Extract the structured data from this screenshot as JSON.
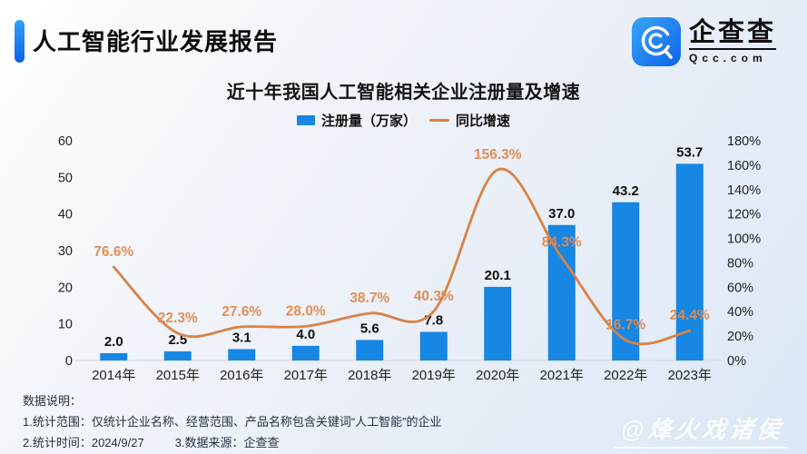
{
  "header": {
    "title": "人工智能行业发展报告",
    "logo": {
      "name_cn": "企查查",
      "name_en": "Qcc.com"
    }
  },
  "chart_data": {
    "type": "bar+line",
    "title": "近十年我国人工智能相关企业注册量及增速",
    "categories": [
      "2014年",
      "2015年",
      "2016年",
      "2017年",
      "2018年",
      "2019年",
      "2020年",
      "2021年",
      "2022年",
      "2023年"
    ],
    "series": [
      {
        "name": "注册量（万家）",
        "type": "bar",
        "axis": "left",
        "values": [
          2.0,
          2.5,
          3.1,
          4.0,
          5.6,
          7.8,
          20.1,
          37.0,
          43.2,
          53.7
        ],
        "labels": [
          "2.0",
          "2.5",
          "3.1",
          "4.0",
          "5.6",
          "7.8",
          "20.1",
          "37.0",
          "43.2",
          "53.7"
        ],
        "color": "#1787e3"
      },
      {
        "name": "同比增速",
        "type": "line",
        "axis": "right",
        "values": [
          76.6,
          22.3,
          27.6,
          28.0,
          38.7,
          40.3,
          156.3,
          84.3,
          16.7,
          24.4
        ],
        "labels": [
          "76.6%",
          "22.3%",
          "27.6%",
          "28.0%",
          "38.7%",
          "40.3%",
          "156.3%",
          "84.3%",
          "16.7%",
          "24.4%"
        ],
        "color": "#d98246",
        "label_color": "#e28a50"
      }
    ],
    "left_axis": {
      "min": 0,
      "max": 60,
      "ticks": [
        "0",
        "10",
        "20",
        "30",
        "40",
        "50",
        "60"
      ]
    },
    "right_axis": {
      "min": 0,
      "max": 180,
      "ticks": [
        "0%",
        "20%",
        "40%",
        "60%",
        "80%",
        "100%",
        "120%",
        "140%",
        "160%",
        "180%"
      ]
    },
    "legend_position": "top",
    "grid": false,
    "axis_text_color": "#222222",
    "baseline_color": "#d9dde5",
    "bar_label_color": "#101010"
  },
  "footer": {
    "heading": "数据说明：",
    "line1": "1.统计范围：仅统计企业名称、经营范围、产品名称包含关键词“人工智能”的企业",
    "line2_items": [
      "2.统计时间：2024/9/27",
      "3.数据来源：企查查"
    ]
  },
  "watermark": "@烽火戏诸侯"
}
